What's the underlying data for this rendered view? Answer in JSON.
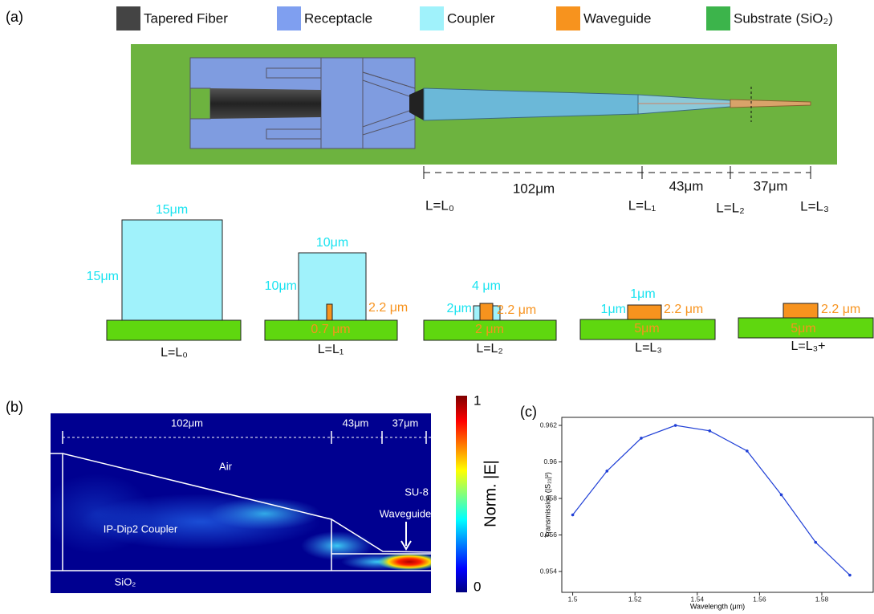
{
  "panel_a": {
    "label": "(a)",
    "legend": [
      "Tapered Fiber",
      "Receptacle",
      "Coupler",
      "Waveguide",
      "Substrate (SiO₂)"
    ],
    "segment_lengths": [
      "102μm",
      "43μm",
      "37μm"
    ],
    "positions": [
      "L=L₀",
      "L=L₁",
      "L=L₂",
      "L=L₃"
    ],
    "cross_sections": [
      {
        "top": "15μm",
        "side": "15μm",
        "caption": "L=L₀"
      },
      {
        "top": "10μm",
        "side": "10μm",
        "height": "2.2 μm",
        "width": "0.7 μm",
        "caption": "L=L₁"
      },
      {
        "top": "4 μm",
        "side": "2μm",
        "height": "2.2 μm",
        "width": "2 μm",
        "caption": "L=L₂"
      },
      {
        "top": "1μm",
        "side": "1μm",
        "height": "2.2 μm",
        "width": "5μm",
        "caption": "L=L₃"
      },
      {
        "height": "2.2 μm",
        "width": "5μm",
        "caption": "L=L₃+"
      }
    ]
  },
  "panel_b": {
    "label": "(b)",
    "segment_lengths": [
      "102μm",
      "43μm",
      "37μm"
    ],
    "air": "Air",
    "coupler": "IP-Dip2 Coupler",
    "waveguide": [
      "SU-8",
      "Waveguide"
    ],
    "substrate": "SiO₂",
    "colorbar": {
      "max": "1",
      "min": "0",
      "label": "Norm. |E|"
    }
  },
  "panel_c": {
    "label": "(c)"
  },
  "chart_data": {
    "type": "line",
    "xlabel": "Wavelength (μm)",
    "ylabel": "Transmission (|S₂₁|²)",
    "x": [
      1.5,
      1.511,
      1.522,
      1.533,
      1.544,
      1.556,
      1.567,
      1.578,
      1.589
    ],
    "values": [
      0.9571,
      0.9595,
      0.9613,
      0.962,
      0.9617,
      0.9606,
      0.9582,
      0.9556,
      0.9538
    ],
    "color": "#1f3fd6",
    "xlim": [
      1.4965,
      1.5965
    ],
    "xticks": [
      1.5,
      1.52,
      1.54,
      1.56,
      1.58
    ],
    "ylim": [
      0.95286,
      0.96244
    ],
    "yticks": [
      0.954,
      0.956,
      0.958,
      0.96,
      0.962
    ]
  }
}
